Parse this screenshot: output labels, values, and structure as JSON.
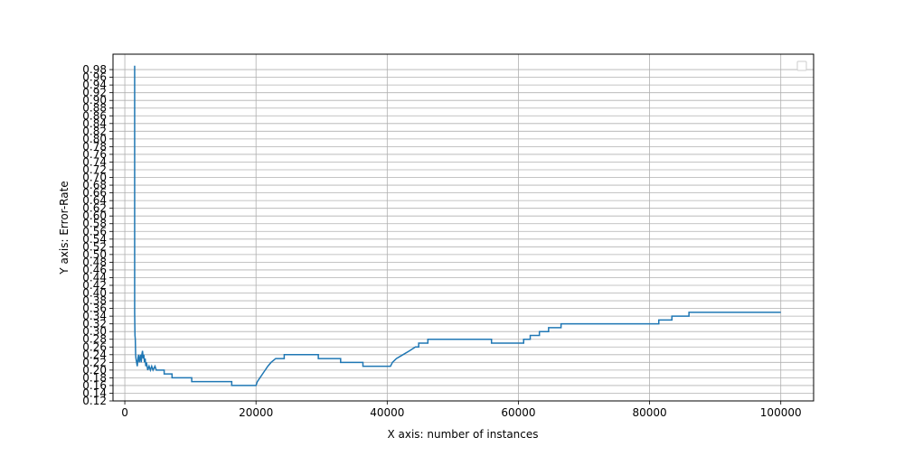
{
  "chart_data": {
    "type": "line",
    "title": "",
    "xlabel": "X axis: number of instances",
    "ylabel": "Y axis: Error-Rate",
    "xlim": [
      -1800,
      105000
    ],
    "ylim": [
      0.12,
      1.02
    ],
    "x_ticks": [
      0,
      20000,
      40000,
      60000,
      80000,
      100000
    ],
    "x_tick_labels": [
      "0",
      "20000",
      "40000",
      "60000",
      "80000",
      "100000"
    ],
    "y_ticks": [
      0.12,
      0.14,
      0.16,
      0.18,
      0.2,
      0.22,
      0.24,
      0.26,
      0.28,
      0.3,
      0.32,
      0.34,
      0.36,
      0.38,
      0.4,
      0.42,
      0.44,
      0.46,
      0.48,
      0.5,
      0.52,
      0.54,
      0.56,
      0.58,
      0.6,
      0.62,
      0.64,
      0.66,
      0.68,
      0.7,
      0.72,
      0.74,
      0.76,
      0.78,
      0.8,
      0.82,
      0.84,
      0.86,
      0.88,
      0.9,
      0.92,
      0.94,
      0.96,
      0.98
    ],
    "y_tick_labels": [
      "0.12",
      "0.14",
      "0.16",
      "0.18",
      "0.20",
      "0.22",
      "0.24",
      "0.26",
      "0.28",
      "0.30",
      "0.32",
      "0.34",
      "0.36",
      "0.38",
      "0.40",
      "0.42",
      "0.44",
      "0.46",
      "0.48",
      "0.50",
      "0.52",
      "0.54",
      "0.56",
      "0.58",
      "0.60",
      "0.62",
      "0.64",
      "0.66",
      "0.68",
      "0.70",
      "0.72",
      "0.74",
      "0.76",
      "0.78",
      "0.80",
      "0.82",
      "0.84",
      "0.86",
      "0.88",
      "0.90",
      "0.92",
      "0.94",
      "0.96",
      "0.98"
    ],
    "grid": true,
    "legend": {
      "placement": "top-right",
      "entries": []
    },
    "series": [
      {
        "color": "#1f77b4",
        "points": [
          [
            1500,
            0.99
          ],
          [
            1500,
            0.4
          ],
          [
            1500,
            0.35
          ],
          [
            1550,
            0.29
          ],
          [
            1600,
            0.28
          ],
          [
            1650,
            0.24
          ],
          [
            1700,
            0.23
          ],
          [
            1800,
            0.22
          ],
          [
            1900,
            0.21
          ],
          [
            2000,
            0.23
          ],
          [
            2100,
            0.24
          ],
          [
            2200,
            0.22
          ],
          [
            2300,
            0.23
          ],
          [
            2400,
            0.24
          ],
          [
            2500,
            0.22
          ],
          [
            2600,
            0.24
          ],
          [
            2700,
            0.25
          ],
          [
            2800,
            0.23
          ],
          [
            2900,
            0.24
          ],
          [
            3000,
            0.22
          ],
          [
            3100,
            0.23
          ],
          [
            3200,
            0.21
          ],
          [
            3300,
            0.22
          ],
          [
            3500,
            0.2
          ],
          [
            3700,
            0.21
          ],
          [
            3900,
            0.2
          ],
          [
            4100,
            0.21
          ],
          [
            4300,
            0.2
          ],
          [
            4600,
            0.21
          ],
          [
            4800,
            0.2
          ],
          [
            6000,
            0.2
          ],
          [
            6000,
            0.19
          ],
          [
            7200,
            0.19
          ],
          [
            7200,
            0.18
          ],
          [
            10200,
            0.18
          ],
          [
            10200,
            0.17
          ],
          [
            16300,
            0.17
          ],
          [
            16300,
            0.16
          ],
          [
            20000,
            0.16
          ],
          [
            20200,
            0.17
          ],
          [
            20600,
            0.18
          ],
          [
            21000,
            0.19
          ],
          [
            21400,
            0.2
          ],
          [
            21800,
            0.21
          ],
          [
            22300,
            0.22
          ],
          [
            23000,
            0.23
          ],
          [
            24300,
            0.23
          ],
          [
            24300,
            0.24
          ],
          [
            29500,
            0.24
          ],
          [
            29500,
            0.23
          ],
          [
            32900,
            0.23
          ],
          [
            32900,
            0.22
          ],
          [
            36300,
            0.22
          ],
          [
            36300,
            0.21
          ],
          [
            40500,
            0.21
          ],
          [
            40800,
            0.22
          ],
          [
            41400,
            0.23
          ],
          [
            42400,
            0.24
          ],
          [
            43400,
            0.25
          ],
          [
            44300,
            0.26
          ],
          [
            44800,
            0.26
          ],
          [
            44800,
            0.27
          ],
          [
            46200,
            0.27
          ],
          [
            46200,
            0.28
          ],
          [
            55900,
            0.28
          ],
          [
            55900,
            0.27
          ],
          [
            60800,
            0.27
          ],
          [
            60800,
            0.28
          ],
          [
            61800,
            0.28
          ],
          [
            61800,
            0.29
          ],
          [
            63200,
            0.29
          ],
          [
            63200,
            0.3
          ],
          [
            64600,
            0.3
          ],
          [
            64600,
            0.31
          ],
          [
            66500,
            0.31
          ],
          [
            66500,
            0.32
          ],
          [
            81400,
            0.32
          ],
          [
            81400,
            0.33
          ],
          [
            83400,
            0.33
          ],
          [
            83400,
            0.34
          ],
          [
            86000,
            0.34
          ],
          [
            86000,
            0.35
          ],
          [
            100000,
            0.35
          ]
        ]
      }
    ]
  }
}
